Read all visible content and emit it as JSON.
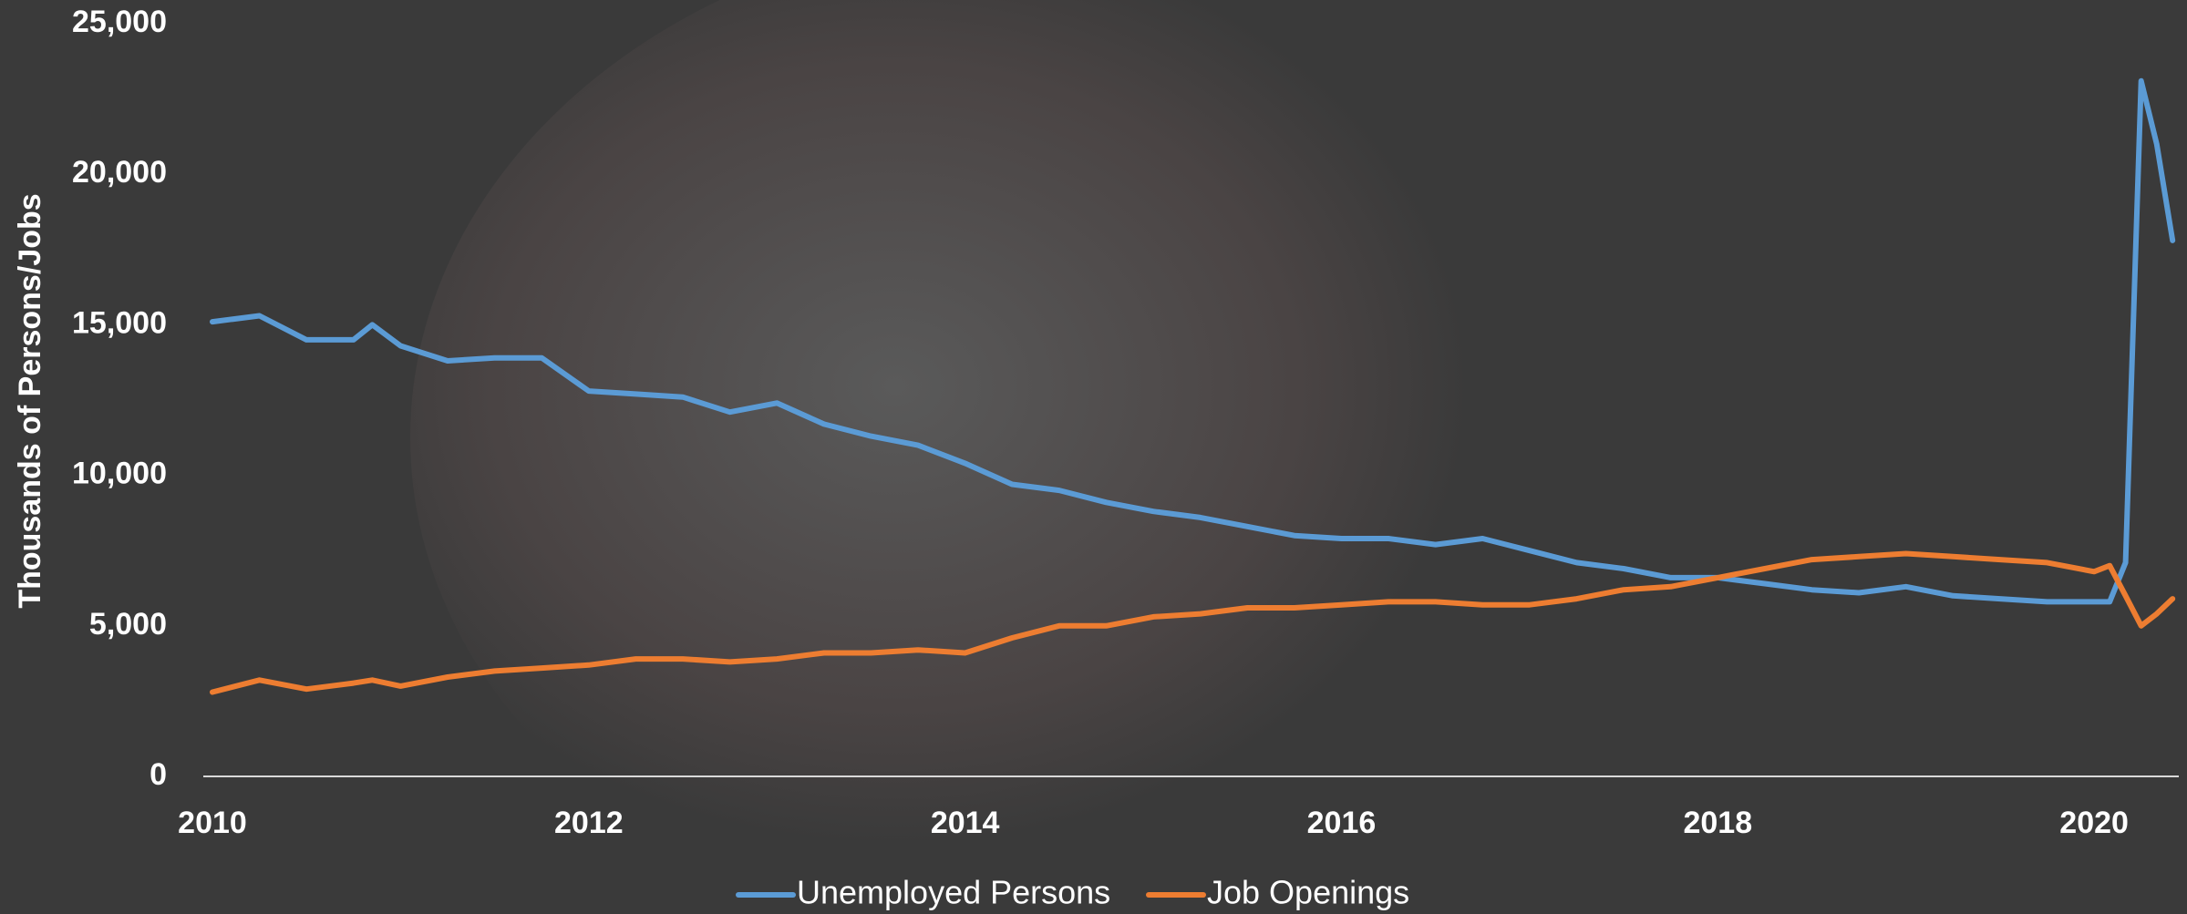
{
  "chart_data": {
    "type": "line",
    "y_label": "Thousands of Persons/Jobs",
    "x": [
      2010.0,
      2010.25,
      2010.5,
      2010.75,
      2010.85,
      2011.0,
      2011.25,
      2011.5,
      2011.75,
      2012.0,
      2012.25,
      2012.5,
      2012.75,
      2013.0,
      2013.25,
      2013.5,
      2013.75,
      2014.0,
      2014.25,
      2014.5,
      2014.75,
      2015.0,
      2015.25,
      2015.5,
      2015.75,
      2016.0,
      2016.25,
      2016.5,
      2016.75,
      2017.0,
      2017.25,
      2017.5,
      2017.75,
      2018.0,
      2018.25,
      2018.5,
      2018.75,
      2019.0,
      2019.25,
      2019.5,
      2019.75,
      2020.0,
      2020.083,
      2020.167,
      2020.25,
      2020.333,
      2020.417
    ],
    "series": [
      {
        "name": "Unemployed Persons",
        "color": "#5b9bd5",
        "values": [
          15100,
          15300,
          14500,
          14500,
          15000,
          14300,
          13800,
          13900,
          13900,
          12800,
          12700,
          12600,
          12100,
          12400,
          11700,
          11300,
          11000,
          10400,
          9700,
          9500,
          9100,
          8800,
          8600,
          8300,
          8000,
          7900,
          7900,
          7700,
          7900,
          7500,
          7100,
          6900,
          6600,
          6600,
          6400,
          6200,
          6100,
          6300,
          6000,
          5900,
          5800,
          5800,
          5800,
          7100,
          23100,
          21000,
          17800
        ]
      },
      {
        "name": "Job Openings",
        "color": "#ed7d31",
        "values": [
          2800,
          3200,
          2900,
          3100,
          3200,
          3000,
          3300,
          3500,
          3600,
          3700,
          3900,
          3900,
          3800,
          3900,
          4100,
          4100,
          4200,
          4100,
          4600,
          5000,
          5000,
          5300,
          5400,
          5600,
          5600,
          5700,
          5800,
          5800,
          5700,
          5700,
          5900,
          6200,
          6300,
          6600,
          6900,
          7200,
          7300,
          7400,
          7300,
          7200,
          7100,
          6800,
          7000,
          6000,
          5000,
          5400,
          5900
        ]
      }
    ],
    "xlim": [
      2010,
      2020.45
    ],
    "xticks": [
      2010,
      2012,
      2014,
      2016,
      2018,
      2020
    ],
    "ylim": [
      0,
      25000
    ],
    "yticks": [
      0,
      {
        "value": 5000,
        "label": "5,000"
      },
      {
        "value": 10000,
        "label": "10,000"
      },
      {
        "value": 15000,
        "label": "15,000"
      },
      {
        "value": 20000,
        "label": "20,000"
      },
      {
        "value": 25000,
        "label": "25,000"
      }
    ],
    "legend": "bottom"
  }
}
